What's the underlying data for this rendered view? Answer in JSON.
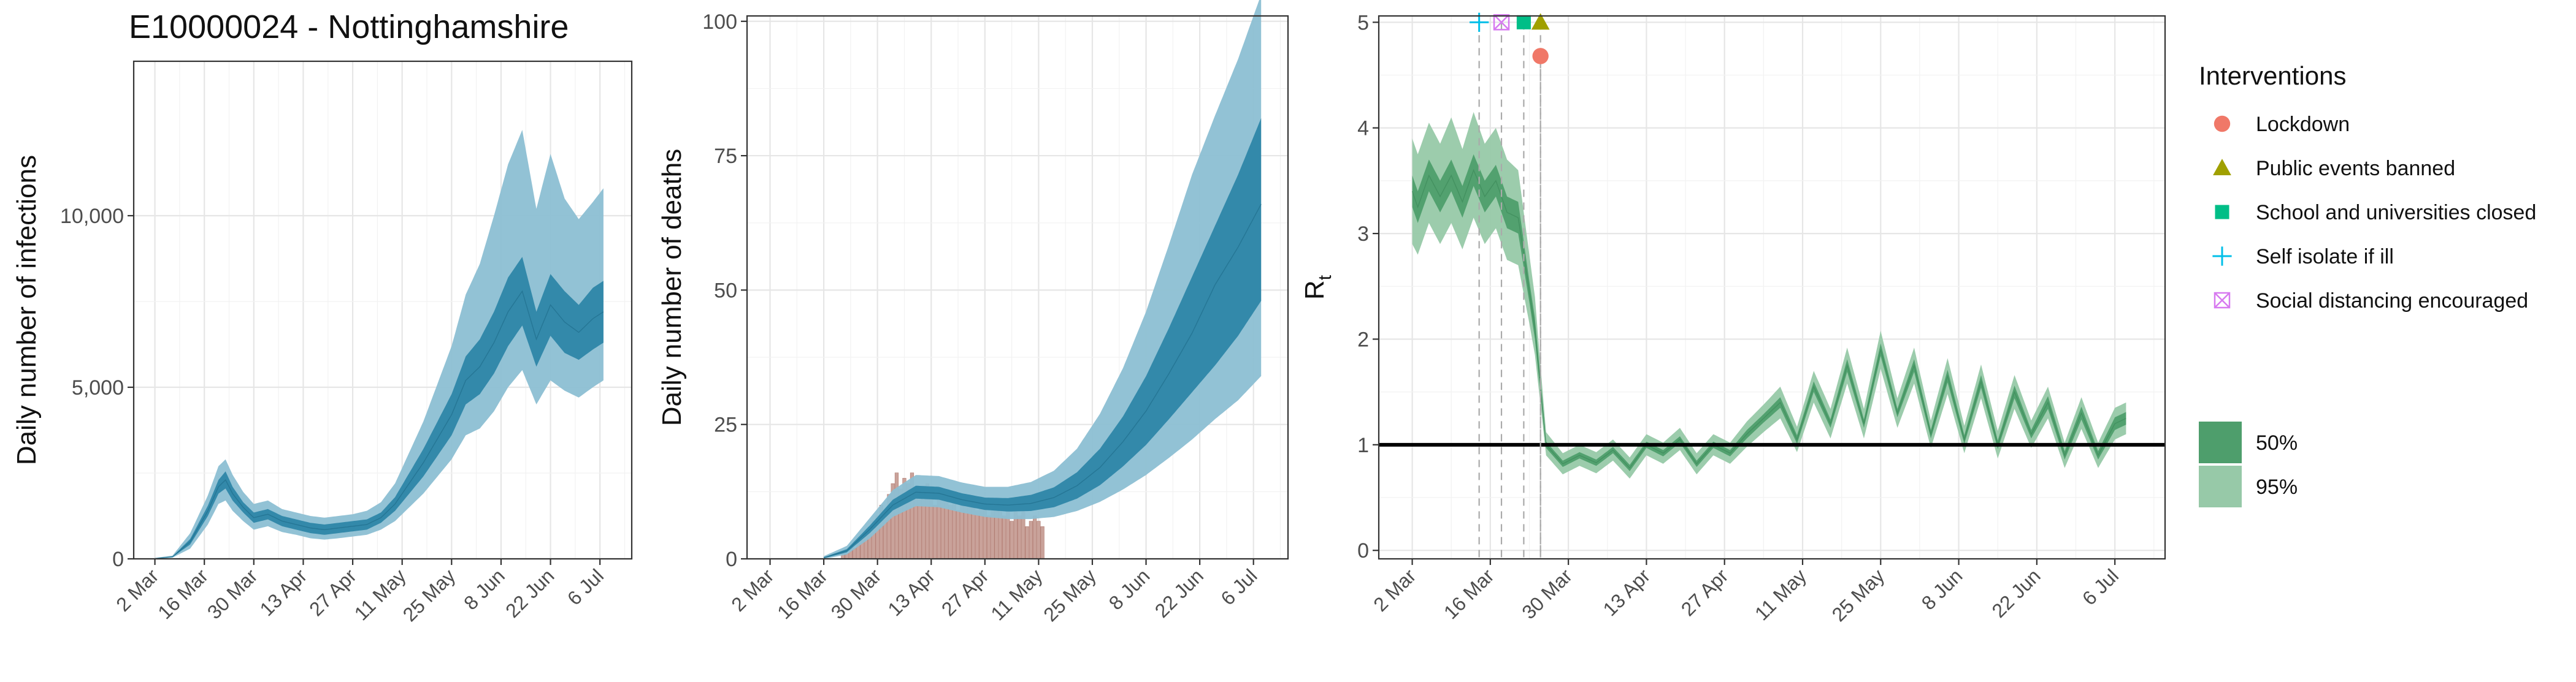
{
  "figure_title": "E10000024 - Nottinghamshire",
  "colors": {
    "blue_50": "#2E86A8",
    "blue_95": "#8CBFD3",
    "blue_line": "#1F6E8C",
    "green_50": "#4E9E6C",
    "green_95": "#97C9A8",
    "deaths_bar": "#C9A29A",
    "deaths_bar_edge": "#B07A70",
    "grid": "#E6E6E6",
    "axis": "#333333",
    "text": "#333333",
    "lockdown": "#F07868",
    "public_events": "#A0A000",
    "schools": "#00BE87",
    "self_isolate": "#00BFE8",
    "social_distancing": "#D77AF0"
  },
  "x_ticks": [
    "2 Mar",
    "16 Mar",
    "30 Mar",
    "13 Apr",
    "27 Apr",
    "11 May",
    "25 May",
    "8 Jun",
    "22 Jun",
    "6 Jul"
  ],
  "chart_data": [
    {
      "type": "area",
      "id": "infections",
      "title": "E10000024 - Nottinghamshire",
      "xlabel": "",
      "ylabel": "Daily number of infections",
      "x_range_days": [
        -6,
        135
      ],
      "ylim": [
        0,
        14500
      ],
      "y_ticks": [
        0,
        5000,
        10000
      ],
      "y_tick_labels": [
        "0",
        "5,000",
        "10,000"
      ],
      "series_anchor_days": [
        0,
        5,
        10,
        15,
        18,
        20,
        22,
        25,
        28,
        32,
        36,
        40,
        44,
        48,
        52,
        56,
        60,
        64,
        68,
        72,
        76,
        80,
        84,
        88,
        92,
        96,
        100,
        104,
        108,
        112,
        116,
        120,
        124,
        127
      ],
      "median": [
        10,
        60,
        500,
        1400,
        2100,
        2300,
        1900,
        1500,
        1200,
        1300,
        1100,
        1000,
        900,
        850,
        900,
        950,
        1000,
        1200,
        1600,
        2200,
        2800,
        3500,
        4200,
        5200,
        5600,
        6300,
        7200,
        7800,
        6400,
        7400,
        6900,
        6600,
        7000,
        7200
      ],
      "ci50_low": [
        5,
        50,
        420,
        1250,
        1900,
        2050,
        1700,
        1350,
        1050,
        1150,
        950,
        850,
        750,
        700,
        750,
        800,
        850,
        1050,
        1400,
        1900,
        2400,
        3000,
        3600,
        4500,
        4800,
        5400,
        6200,
        6800,
        5600,
        6500,
        6000,
        5800,
        6100,
        6300
      ],
      "ci50_high": [
        15,
        70,
        580,
        1550,
        2300,
        2550,
        2100,
        1650,
        1350,
        1450,
        1250,
        1150,
        1050,
        1000,
        1050,
        1100,
        1150,
        1350,
        1800,
        2500,
        3200,
        4000,
        4800,
        5900,
        6400,
        7200,
        8200,
        8800,
        7200,
        8300,
        7800,
        7400,
        7900,
        8100
      ],
      "ci95_low": [
        2,
        35,
        300,
        1000,
        1600,
        1700,
        1400,
        1100,
        850,
        950,
        780,
        700,
        600,
        560,
        600,
        650,
        700,
        850,
        1100,
        1500,
        1900,
        2400,
        2900,
        3600,
        3800,
        4300,
        5000,
        5500,
        4500,
        5200,
        4900,
        4700,
        5000,
        5200
      ],
      "ci95_high": [
        25,
        95,
        750,
        1850,
        2700,
        2900,
        2450,
        1950,
        1600,
        1700,
        1450,
        1350,
        1250,
        1200,
        1250,
        1300,
        1400,
        1650,
        2200,
        3100,
        4000,
        5100,
        6200,
        7700,
        8600,
        10000,
        11500,
        12500,
        10200,
        11800,
        10500,
        9900,
        10400,
        10800
      ],
      "legend": []
    },
    {
      "type": "area",
      "id": "deaths",
      "title": "",
      "xlabel": "",
      "ylabel": "Daily number of deaths",
      "x_range_days": [
        -6,
        135
      ],
      "ylim": [
        0,
        101
      ],
      "y_ticks": [
        0,
        25,
        50,
        75,
        100
      ],
      "y_tick_labels": [
        "0",
        "25",
        "50",
        "75",
        "100"
      ],
      "bars_start_day": 17,
      "bar_values": [
        0,
        0,
        1,
        1,
        2,
        2,
        3,
        4,
        5,
        5,
        7,
        8,
        10,
        9,
        12,
        14,
        16,
        13,
        15,
        14,
        16,
        12,
        11,
        13,
        14,
        12,
        10,
        13,
        11,
        12,
        10,
        11,
        9,
        12,
        11,
        10,
        10,
        9,
        11,
        10,
        8,
        10,
        11,
        9,
        8,
        10,
        7,
        9,
        8,
        9,
        6,
        7,
        8,
        7,
        6
      ],
      "series_anchor_days": [
        14,
        20,
        26,
        32,
        38,
        44,
        50,
        56,
        62,
        68,
        74,
        80,
        86,
        92,
        98,
        104,
        110,
        116,
        122,
        128
      ],
      "median": [
        0.2,
        1.5,
        5.5,
        10,
        12.4,
        12.2,
        11,
        10.2,
        10,
        10.3,
        11.4,
        13.6,
        17,
        21.8,
        27.5,
        34.5,
        42,
        51,
        58,
        66
      ],
      "ci50_low": [
        0.1,
        1.2,
        4.8,
        9,
        11.2,
        11,
        9.9,
        9.1,
        8.8,
        8.9,
        9.6,
        11.2,
        13.7,
        17.2,
        21.2,
        26,
        31,
        36,
        41.5,
        48
      ],
      "ci50_high": [
        0.3,
        1.8,
        6.2,
        11,
        13.6,
        13.4,
        12.2,
        11.4,
        11.3,
        11.9,
        13.3,
        16.1,
        20.5,
        26.5,
        34,
        43,
        52.5,
        62,
        71.5,
        82
      ],
      "ci95_low": [
        0,
        0.8,
        3.8,
        7.8,
        9.8,
        9.6,
        8.6,
        7.8,
        7.4,
        7.4,
        7.8,
        8.9,
        10.6,
        12.9,
        15.6,
        18.8,
        22.2,
        26,
        29.5,
        34
      ],
      "ci95_high": [
        0.5,
        2.4,
        7.6,
        12.8,
        15.6,
        15.4,
        14.2,
        13.4,
        13.4,
        14.3,
        16.4,
        20.5,
        27,
        35.5,
        46,
        58.5,
        71.5,
        82.5,
        93,
        105
      ],
      "legend": []
    },
    {
      "type": "area",
      "id": "rt",
      "title": "",
      "xlabel": "",
      "ylabel": "R",
      "ylabel_subscript": "t",
      "x_range_days": [
        -6,
        135
      ],
      "ylim": [
        -0.08,
        5.06
      ],
      "y_ticks": [
        0,
        1,
        2,
        3,
        4,
        5
      ],
      "y_tick_labels": [
        "0",
        "1",
        "2",
        "3",
        "4",
        "5"
      ],
      "reference_line": 1,
      "series_anchor_days": [
        0,
        1,
        3,
        5,
        7,
        9,
        11,
        13,
        15,
        17,
        19,
        21,
        22,
        23,
        24,
        27,
        30,
        33,
        36,
        39,
        42,
        45,
        48,
        51,
        54,
        57,
        60,
        63,
        66,
        69,
        72,
        75,
        78,
        81,
        84,
        87,
        90,
        93,
        96,
        99,
        102,
        105,
        108,
        111,
        114,
        117,
        120,
        123,
        126,
        128
      ],
      "median": [
        3.4,
        3.25,
        3.55,
        3.35,
        3.55,
        3.3,
        3.6,
        3.35,
        3.5,
        3.2,
        3.15,
        2.45,
        2.1,
        1.55,
        1.0,
        0.82,
        0.9,
        0.83,
        0.95,
        0.78,
        1.0,
        0.92,
        1.05,
        0.82,
        1.0,
        0.92,
        1.1,
        1.25,
        1.4,
        1.05,
        1.55,
        1.2,
        1.75,
        1.2,
        1.9,
        1.3,
        1.75,
        1.1,
        1.65,
        1.05,
        1.6,
        1.0,
        1.5,
        1.1,
        1.4,
        0.9,
        1.3,
        0.9,
        1.2,
        1.25
      ],
      "ci50_low": [
        3.25,
        3.1,
        3.4,
        3.2,
        3.4,
        3.15,
        3.45,
        3.2,
        3.35,
        3.05,
        3.0,
        2.35,
        2.0,
        1.48,
        0.97,
        0.79,
        0.87,
        0.8,
        0.92,
        0.75,
        0.97,
        0.89,
        1.02,
        0.79,
        0.97,
        0.89,
        1.06,
        1.21,
        1.35,
        1.01,
        1.5,
        1.16,
        1.69,
        1.16,
        1.84,
        1.26,
        1.69,
        1.06,
        1.59,
        1.01,
        1.54,
        0.96,
        1.44,
        1.06,
        1.34,
        0.86,
        1.24,
        0.86,
        1.14,
        1.19
      ],
      "ci50_high": [
        3.55,
        3.4,
        3.7,
        3.5,
        3.7,
        3.45,
        3.75,
        3.5,
        3.65,
        3.35,
        3.3,
        2.55,
        2.2,
        1.62,
        1.03,
        0.85,
        0.93,
        0.86,
        0.98,
        0.81,
        1.03,
        0.95,
        1.08,
        0.85,
        1.03,
        0.95,
        1.14,
        1.29,
        1.45,
        1.09,
        1.6,
        1.24,
        1.81,
        1.24,
        1.96,
        1.34,
        1.81,
        1.14,
        1.71,
        1.09,
        1.66,
        1.04,
        1.56,
        1.14,
        1.46,
        0.94,
        1.36,
        0.94,
        1.26,
        1.31
      ],
      "ci95_low": [
        2.9,
        2.8,
        3.1,
        2.9,
        3.1,
        2.85,
        3.15,
        2.9,
        3.05,
        2.75,
        2.7,
        2.15,
        1.85,
        1.38,
        0.9,
        0.72,
        0.8,
        0.73,
        0.85,
        0.68,
        0.9,
        0.82,
        0.95,
        0.72,
        0.9,
        0.82,
        0.98,
        1.12,
        1.25,
        0.93,
        1.4,
        1.06,
        1.58,
        1.06,
        1.72,
        1.16,
        1.58,
        0.97,
        1.48,
        0.92,
        1.44,
        0.87,
        1.34,
        0.97,
        1.25,
        0.78,
        1.15,
        0.78,
        1.05,
        1.1
      ],
      "ci95_high": [
        3.9,
        3.75,
        4.05,
        3.85,
        4.1,
        3.8,
        4.15,
        3.85,
        4.0,
        3.7,
        3.6,
        2.8,
        2.4,
        1.75,
        1.12,
        0.92,
        1.0,
        0.93,
        1.05,
        0.88,
        1.1,
        1.02,
        1.16,
        0.92,
        1.1,
        1.02,
        1.22,
        1.38,
        1.55,
        1.17,
        1.7,
        1.34,
        1.92,
        1.34,
        2.08,
        1.44,
        1.92,
        1.23,
        1.82,
        1.18,
        1.76,
        1.13,
        1.66,
        1.23,
        1.55,
        1.02,
        1.45,
        1.02,
        1.35,
        1.4
      ],
      "interventions": [
        {
          "label": "Self isolate if ill",
          "day": 12,
          "value": 5.0,
          "shape": "plus",
          "color_key": "self_isolate"
        },
        {
          "label": "Social distancing encouraged",
          "day": 16,
          "value": 5.0,
          "shape": "boxx",
          "color_key": "social_distancing"
        },
        {
          "label": "School and universities closed",
          "day": 20,
          "value": 5.0,
          "shape": "square",
          "color_key": "schools"
        },
        {
          "label": "Public events banned",
          "day": 23,
          "value": 5.0,
          "shape": "triangle",
          "color_key": "public_events"
        },
        {
          "label": "Lockdown",
          "day": 23,
          "value": 4.68,
          "shape": "circle",
          "color_key": "lockdown"
        }
      ],
      "legend": []
    }
  ],
  "legend": {
    "interventions_title": "Interventions",
    "interventions": [
      {
        "label": "Lockdown",
        "shape": "circle",
        "color_key": "lockdown"
      },
      {
        "label": "Public events banned",
        "shape": "triangle",
        "color_key": "public_events"
      },
      {
        "label": "School and universities closed",
        "shape": "square",
        "color_key": "schools"
      },
      {
        "label": "Self isolate if ill",
        "shape": "plus",
        "color_key": "self_isolate"
      },
      {
        "label": "Social distancing encouraged",
        "shape": "boxx",
        "color_key": "social_distancing"
      }
    ],
    "bands": [
      {
        "label": "50%",
        "color_key": "green_50"
      },
      {
        "label": "95%",
        "color_key": "green_95"
      }
    ]
  }
}
